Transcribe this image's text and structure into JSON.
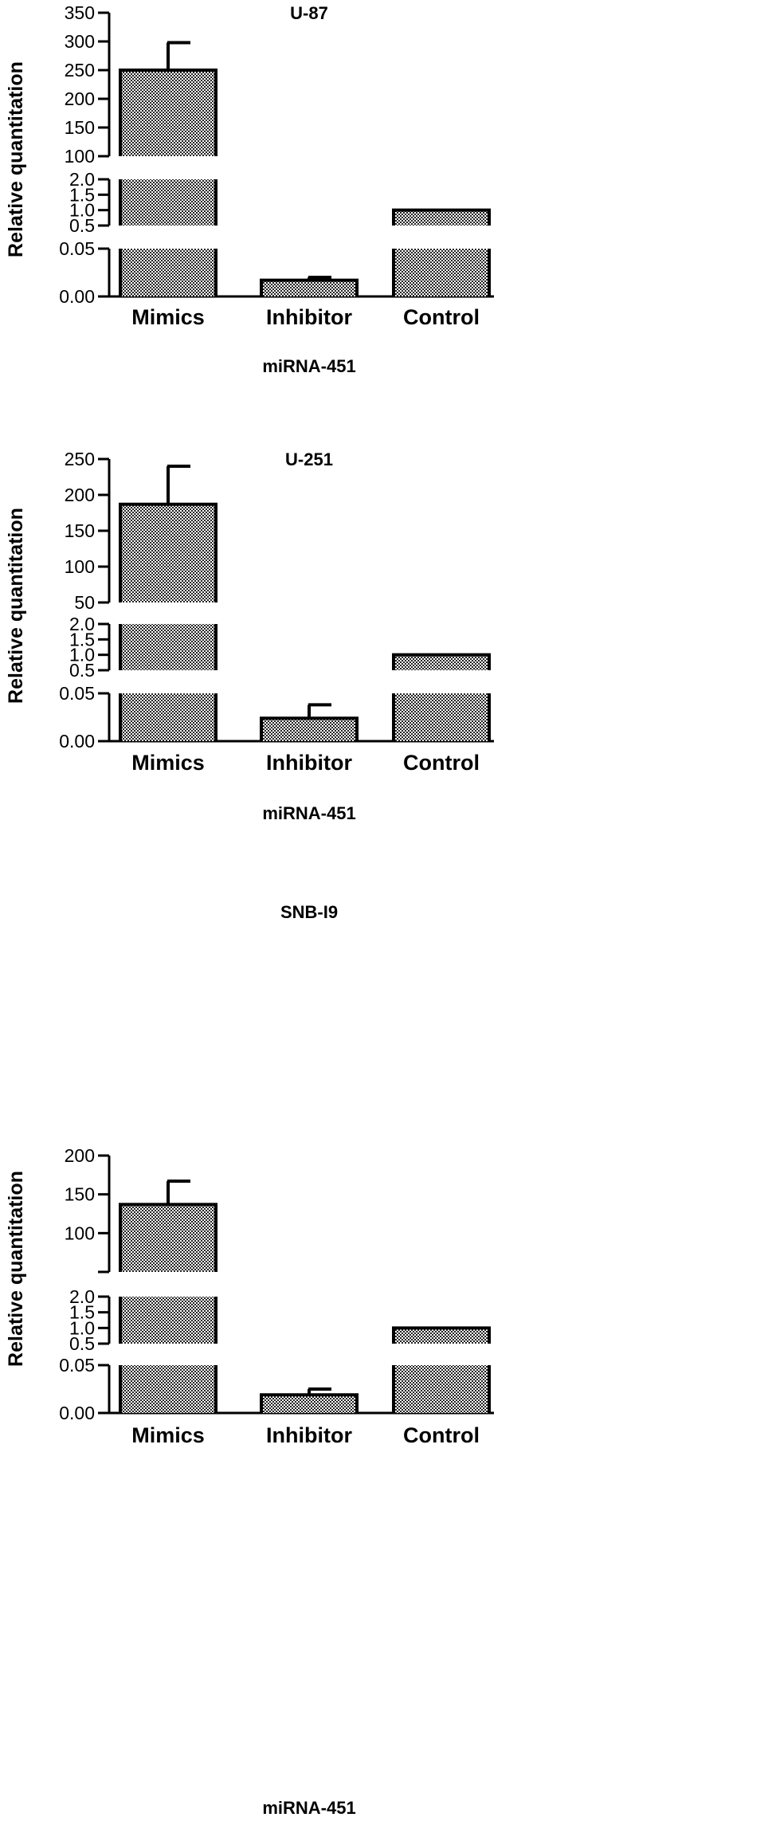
{
  "chart_data": [
    {
      "type": "bar",
      "title": "U-87",
      "xlabel": "miRNA-451",
      "ylabel": "Relative quantitation",
      "categories": [
        "Mimics",
        "Inhibitor",
        "Control"
      ],
      "values": [
        250,
        0.017,
        1.0
      ],
      "error": [
        48,
        0.003,
        0
      ],
      "broken_axis": true,
      "segments": [
        {
          "range": [
            0,
            0.05
          ],
          "ticks": [
            "0.00",
            "0.05"
          ]
        },
        {
          "range": [
            0.5,
            2.0
          ],
          "ticks": [
            "0.5",
            "1.0",
            "1.5",
            "2.0"
          ]
        },
        {
          "range": [
            100,
            350
          ],
          "ticks": [
            "100",
            "150",
            "200",
            "250",
            "300",
            "350"
          ]
        }
      ]
    },
    {
      "type": "bar",
      "title": "U-251",
      "xlabel": "miRNA-451",
      "ylabel": "Relative quantitation",
      "categories": [
        "Mimics",
        "Inhibitor",
        "Control"
      ],
      "values": [
        187,
        0.024,
        1.0
      ],
      "error": [
        53,
        0.014,
        0
      ],
      "broken_axis": true,
      "segments": [
        {
          "range": [
            0,
            0.05
          ],
          "ticks": [
            "0.00",
            "0.05"
          ]
        },
        {
          "range": [
            0.5,
            2.0
          ],
          "ticks": [
            "0.5",
            "1.0",
            "1.5",
            "2.0"
          ]
        },
        {
          "range": [
            50,
            250
          ],
          "ticks": [
            "50",
            "100",
            "150",
            "200",
            "250"
          ]
        }
      ]
    },
    {
      "type": "bar",
      "title": "SNB-I9",
      "xlabel": "miRNA-451",
      "ylabel": "Relative quantitation",
      "categories": [
        "Mimics",
        "Inhibitor",
        "Control"
      ],
      "values": [
        137,
        0.019,
        1.0
      ],
      "error": [
        30,
        0.006,
        0
      ],
      "broken_axis": true,
      "segments": [
        {
          "range": [
            0,
            0.05
          ],
          "ticks": [
            "0.00",
            "0.05"
          ]
        },
        {
          "range": [
            0.5,
            2.0
          ],
          "ticks": [
            "0.5",
            "1.0",
            "1.5",
            "2.0"
          ]
        },
        {
          "range": [
            50,
            200
          ],
          "ticks": [
            "",
            "100",
            "150",
            "200"
          ]
        }
      ]
    }
  ]
}
